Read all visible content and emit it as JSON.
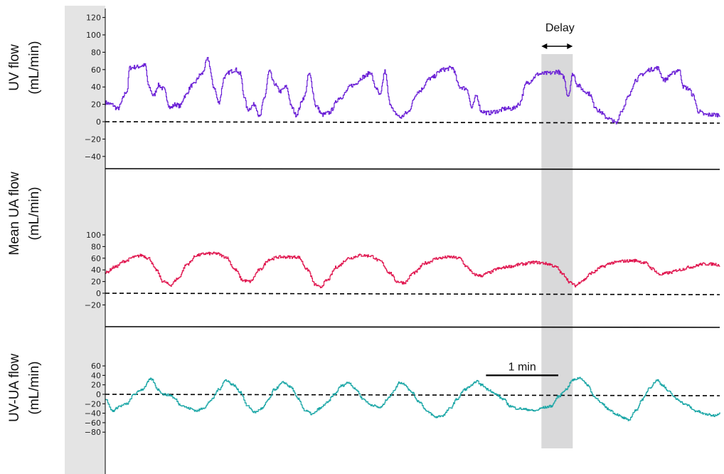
{
  "chart_data": {
    "type": "line",
    "colors": {
      "uv": "#6a1fd6",
      "ua": "#e0164f",
      "diff": "#1aa6a6",
      "axis_strip": "#e4e4e4",
      "highlight": "#b9b9bb"
    },
    "x_range_seconds": [
      0,
      450
    ],
    "panels": [
      {
        "id": "uv",
        "ylabel": [
          "UV flow",
          "(mL/min)"
        ],
        "ylim": [
          -50,
          125
        ],
        "ticks": [
          -40,
          -20,
          0,
          20,
          40,
          60,
          80,
          100,
          120
        ],
        "series_color_key": "uv",
        "anchors": [
          [
            0,
            22
          ],
          [
            5,
            20
          ],
          [
            10,
            15
          ],
          [
            18,
            35
          ],
          [
            20,
            62
          ],
          [
            25,
            63
          ],
          [
            33,
            65
          ],
          [
            36,
            40
          ],
          [
            40,
            30
          ],
          [
            44,
            42
          ],
          [
            48,
            38
          ],
          [
            54,
            16
          ],
          [
            58,
            20
          ],
          [
            62,
            18
          ],
          [
            66,
            30
          ],
          [
            72,
            42
          ],
          [
            80,
            55
          ],
          [
            85,
            72
          ],
          [
            90,
            40
          ],
          [
            94,
            22
          ],
          [
            99,
            52
          ],
          [
            104,
            58
          ],
          [
            108,
            60
          ],
          [
            112,
            55
          ],
          [
            115,
            30
          ],
          [
            118,
            14
          ],
          [
            124,
            20
          ],
          [
            128,
            5
          ],
          [
            132,
            28
          ],
          [
            136,
            58
          ],
          [
            140,
            44
          ],
          [
            145,
            35
          ],
          [
            150,
            40
          ],
          [
            155,
            16
          ],
          [
            158,
            8
          ],
          [
            165,
            28
          ],
          [
            169,
            55
          ],
          [
            175,
            18
          ],
          [
            180,
            8
          ],
          [
            185,
            10
          ],
          [
            195,
            28
          ],
          [
            205,
            42
          ],
          [
            215,
            52
          ],
          [
            220,
            57
          ],
          [
            224,
            40
          ],
          [
            228,
            30
          ],
          [
            232,
            58
          ],
          [
            236,
            22
          ],
          [
            240,
            10
          ],
          [
            245,
            5
          ],
          [
            250,
            10
          ],
          [
            260,
            35
          ],
          [
            270,
            50
          ],
          [
            280,
            60
          ],
          [
            288,
            62
          ],
          [
            294,
            40
          ],
          [
            300,
            38
          ],
          [
            304,
            16
          ],
          [
            308,
            30
          ],
          [
            312,
            12
          ],
          [
            318,
            10
          ],
          [
            325,
            12
          ],
          [
            332,
            15
          ],
          [
            338,
            15
          ],
          [
            343,
            20
          ],
          [
            350,
            45
          ],
          [
            360,
            55
          ],
          [
            370,
            56
          ],
          [
            375,
            58
          ],
          [
            380,
            52
          ],
          [
            384,
            30
          ],
          [
            388,
            55
          ],
          [
            392,
            42
          ],
          [
            398,
            35
          ],
          [
            402,
            32
          ],
          [
            406,
            18
          ],
          [
            410,
            12
          ],
          [
            416,
            5
          ],
          [
            420,
            2
          ],
          [
            424,
            -2
          ],
          [
            428,
            12
          ],
          [
            434,
            28
          ],
          [
            440,
            48
          ],
          [
            446,
            55
          ],
          [
            452,
            60
          ],
          [
            458,
            62
          ],
          [
            464,
            48
          ],
          [
            470,
            55
          ],
          [
            476,
            60
          ],
          [
            480,
            40
          ],
          [
            484,
            38
          ],
          [
            488,
            30
          ],
          [
            492,
            12
          ],
          [
            498,
            8
          ],
          [
            504,
            8
          ],
          [
            510,
            8
          ]
        ]
      },
      {
        "id": "ua",
        "ylabel": [
          "Mean UA flow",
          "(mL/min)"
        ],
        "ylim": [
          -35,
          112
        ],
        "ticks": [
          -20,
          0,
          20,
          40,
          60,
          80,
          100
        ],
        "series_color_key": "ua",
        "anchors": [
          [
            0,
            35
          ],
          [
            8,
            45
          ],
          [
            16,
            55
          ],
          [
            24,
            62
          ],
          [
            30,
            65
          ],
          [
            36,
            60
          ],
          [
            42,
            40
          ],
          [
            48,
            20
          ],
          [
            54,
            14
          ],
          [
            60,
            25
          ],
          [
            68,
            50
          ],
          [
            76,
            65
          ],
          [
            84,
            68
          ],
          [
            92,
            68
          ],
          [
            100,
            62
          ],
          [
            108,
            40
          ],
          [
            114,
            22
          ],
          [
            120,
            20
          ],
          [
            128,
            40
          ],
          [
            136,
            58
          ],
          [
            144,
            62
          ],
          [
            152,
            62
          ],
          [
            160,
            62
          ],
          [
            168,
            40
          ],
          [
            174,
            15
          ],
          [
            178,
            10
          ],
          [
            184,
            22
          ],
          [
            192,
            45
          ],
          [
            202,
            60
          ],
          [
            212,
            65
          ],
          [
            220,
            64
          ],
          [
            228,
            55
          ],
          [
            236,
            35
          ],
          [
            242,
            20
          ],
          [
            248,
            18
          ],
          [
            256,
            35
          ],
          [
            266,
            52
          ],
          [
            276,
            60
          ],
          [
            286,
            62
          ],
          [
            294,
            60
          ],
          [
            300,
            45
          ],
          [
            306,
            32
          ],
          [
            312,
            30
          ],
          [
            318,
            35
          ],
          [
            326,
            42
          ],
          [
            336,
            46
          ],
          [
            346,
            50
          ],
          [
            356,
            53
          ],
          [
            362,
            52
          ],
          [
            368,
            50
          ],
          [
            374,
            45
          ],
          [
            380,
            32
          ],
          [
            386,
            18
          ],
          [
            390,
            13
          ],
          [
            396,
            22
          ],
          [
            404,
            35
          ],
          [
            412,
            45
          ],
          [
            420,
            52
          ],
          [
            430,
            55
          ],
          [
            440,
            56
          ],
          [
            448,
            52
          ],
          [
            454,
            42
          ],
          [
            460,
            32
          ],
          [
            468,
            35
          ],
          [
            476,
            40
          ],
          [
            486,
            45
          ],
          [
            496,
            50
          ],
          [
            505,
            50
          ],
          [
            510,
            48
          ]
        ]
      },
      {
        "id": "diff",
        "ylabel": [
          "UV-UA flow",
          "(mL/min)"
        ],
        "ylim": [
          -85,
          72
        ],
        "ticks": [
          -80,
          -60,
          -40,
          -20,
          0,
          20,
          40,
          60
        ],
        "series_color_key": "diff",
        "anchors": [
          [
            0,
            -10
          ],
          [
            6,
            -35
          ],
          [
            12,
            -25
          ],
          [
            18,
            -20
          ],
          [
            24,
            0
          ],
          [
            30,
            10
          ],
          [
            38,
            32
          ],
          [
            44,
            10
          ],
          [
            48,
            0
          ],
          [
            54,
            -2
          ],
          [
            58,
            -10
          ],
          [
            62,
            -22
          ],
          [
            70,
            -30
          ],
          [
            76,
            -35
          ],
          [
            82,
            -28
          ],
          [
            88,
            -12
          ],
          [
            94,
            10
          ],
          [
            100,
            30
          ],
          [
            106,
            20
          ],
          [
            112,
            5
          ],
          [
            118,
            -25
          ],
          [
            124,
            -38
          ],
          [
            130,
            -30
          ],
          [
            136,
            -10
          ],
          [
            140,
            10
          ],
          [
            148,
            25
          ],
          [
            154,
            15
          ],
          [
            160,
            -10
          ],
          [
            166,
            -35
          ],
          [
            172,
            -42
          ],
          [
            178,
            -30
          ],
          [
            184,
            -18
          ],
          [
            190,
            0
          ],
          [
            196,
            18
          ],
          [
            202,
            25
          ],
          [
            208,
            10
          ],
          [
            214,
            -10
          ],
          [
            220,
            -22
          ],
          [
            228,
            -28
          ],
          [
            236,
            -5
          ],
          [
            240,
            10
          ],
          [
            244,
            25
          ],
          [
            248,
            22
          ],
          [
            254,
            5
          ],
          [
            260,
            -15
          ],
          [
            268,
            -38
          ],
          [
            274,
            -48
          ],
          [
            280,
            -45
          ],
          [
            286,
            -30
          ],
          [
            292,
            -10
          ],
          [
            298,
            10
          ],
          [
            304,
            18
          ],
          [
            308,
            28
          ],
          [
            312,
            20
          ],
          [
            318,
            10
          ],
          [
            324,
            0
          ],
          [
            330,
            -10
          ],
          [
            336,
            -25
          ],
          [
            342,
            -30
          ],
          [
            350,
            -32
          ],
          [
            356,
            -35
          ],
          [
            364,
            -28
          ],
          [
            370,
            -25
          ],
          [
            376,
            -5
          ],
          [
            382,
            10
          ],
          [
            388,
            30
          ],
          [
            394,
            35
          ],
          [
            400,
            20
          ],
          [
            406,
            -5
          ],
          [
            412,
            -20
          ],
          [
            418,
            -32
          ],
          [
            424,
            -42
          ],
          [
            430,
            -50
          ],
          [
            434,
            -55
          ],
          [
            440,
            -35
          ],
          [
            446,
            -10
          ],
          [
            452,
            15
          ],
          [
            458,
            30
          ],
          [
            462,
            20
          ],
          [
            468,
            5
          ],
          [
            474,
            -10
          ],
          [
            482,
            -22
          ],
          [
            490,
            -35
          ],
          [
            498,
            -42
          ],
          [
            505,
            -45
          ],
          [
            510,
            -40
          ]
        ]
      }
    ],
    "highlight_x": [
      362,
      388
    ],
    "delay_label": "Delay",
    "scale_bar": {
      "label": "1 min",
      "x_start": 316,
      "x_end": 376,
      "panel": "diff",
      "y": 40
    }
  }
}
